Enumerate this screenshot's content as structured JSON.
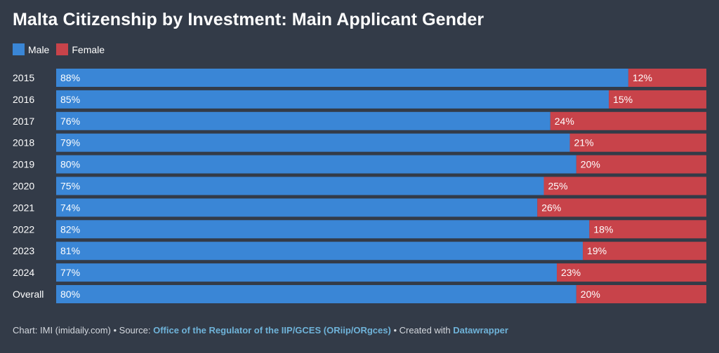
{
  "title": "Malta Citizenship by Investment: Main Applicant Gender",
  "legend": [
    {
      "label": "Male",
      "color": "#3a86d6"
    },
    {
      "label": "Female",
      "color": "#c8434a"
    }
  ],
  "chart_data": {
    "type": "bar",
    "orientation": "horizontal",
    "stacked": true,
    "categories": [
      "2015",
      "2016",
      "2017",
      "2018",
      "2019",
      "2020",
      "2021",
      "2022",
      "2023",
      "2024",
      "Overall"
    ],
    "series": [
      {
        "name": "Male",
        "color": "#3a86d6",
        "values": [
          88,
          85,
          76,
          79,
          80,
          75,
          74,
          82,
          81,
          77,
          80
        ]
      },
      {
        "name": "Female",
        "color": "#c8434a",
        "values": [
          12,
          15,
          24,
          21,
          20,
          25,
          26,
          18,
          19,
          23,
          20
        ]
      }
    ],
    "value_suffix": "%",
    "xlim": [
      0,
      100
    ]
  },
  "footer": {
    "chart_prefix": "Chart: IMI (imidaily.com) • Source: ",
    "source_link": "Office of the Regulator of the IIP/GCES (ORiip/ORgces)",
    "created_prefix": " • Created with ",
    "created_link": "Datawrapper"
  }
}
